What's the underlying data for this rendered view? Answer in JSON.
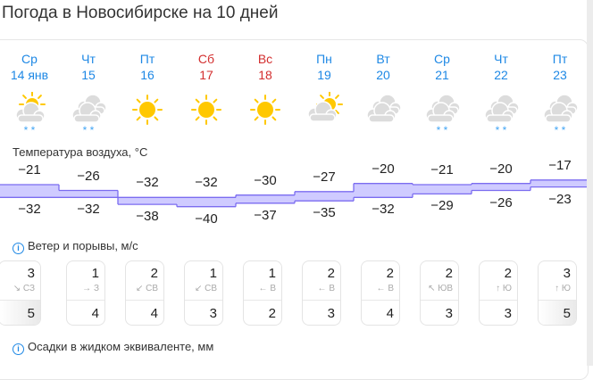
{
  "title": "Погода в Новосибирске на 10 дней",
  "colors": {
    "weekday": "#1e88e5",
    "weekend": "#d32f2f",
    "temp_fill": "#cfcbff",
    "temp_line": "#7b6cf0",
    "sun": "#ffc800",
    "cloud": "#dcdcdc",
    "snow": "#42a5f5"
  },
  "days": [
    {
      "dow": "Ср",
      "date": "14 янв",
      "weekend": false,
      "icon": "partly-cloudy-snow-icon"
    },
    {
      "dow": "Чт",
      "date": "15",
      "weekend": false,
      "icon": "cloudy-snow-icon"
    },
    {
      "dow": "Пт",
      "date": "16",
      "weekend": false,
      "icon": "sun-icon"
    },
    {
      "dow": "Сб",
      "date": "17",
      "weekend": true,
      "icon": "sun-icon"
    },
    {
      "dow": "Вс",
      "date": "18",
      "weekend": true,
      "icon": "sun-icon"
    },
    {
      "dow": "Пн",
      "date": "19",
      "weekend": false,
      "icon": "partly-cloudy-icon"
    },
    {
      "dow": "Вт",
      "date": "20",
      "weekend": false,
      "icon": "cloudy-icon"
    },
    {
      "dow": "Ср",
      "date": "21",
      "weekend": false,
      "icon": "cloudy-snow-icon"
    },
    {
      "dow": "Чт",
      "date": "22",
      "weekend": false,
      "icon": "cloudy-snow-icon"
    },
    {
      "dow": "Пт",
      "date": "23",
      "weekend": false,
      "icon": "cloudy-snow-icon"
    }
  ],
  "temperature": {
    "label": "Температура воздуха, °C",
    "high": [
      "−21",
      "−26",
      "−32",
      "−32",
      "−30",
      "−27",
      "−20",
      "−21",
      "−20",
      "−17"
    ],
    "low": [
      "−32",
      "−32",
      "−38",
      "−40",
      "−37",
      "−35",
      "−32",
      "−29",
      "−26",
      "−23"
    ]
  },
  "wind": {
    "label": "Ветер и порывы, м/с",
    "items": [
      {
        "speed": "3",
        "dir": "↘ СЗ",
        "gust": "5",
        "hi": true
      },
      {
        "speed": "1",
        "dir": "→ З",
        "gust": "4",
        "hi": false
      },
      {
        "speed": "2",
        "dir": "↙ СВ",
        "gust": "4",
        "hi": false
      },
      {
        "speed": "1",
        "dir": "↙ СВ",
        "gust": "3",
        "hi": false
      },
      {
        "speed": "1",
        "dir": "← В",
        "gust": "2",
        "hi": false
      },
      {
        "speed": "2",
        "dir": "← В",
        "gust": "3",
        "hi": false
      },
      {
        "speed": "2",
        "dir": "← В",
        "gust": "4",
        "hi": false
      },
      {
        "speed": "2",
        "dir": "↖ ЮВ",
        "gust": "3",
        "hi": false
      },
      {
        "speed": "2",
        "dir": "↑ Ю",
        "gust": "3",
        "hi": false
      },
      {
        "speed": "3",
        "dir": "↑ Ю",
        "gust": "5",
        "hi": true
      }
    ]
  },
  "precip": {
    "label": "Осадки в жидком эквиваленте, мм"
  }
}
